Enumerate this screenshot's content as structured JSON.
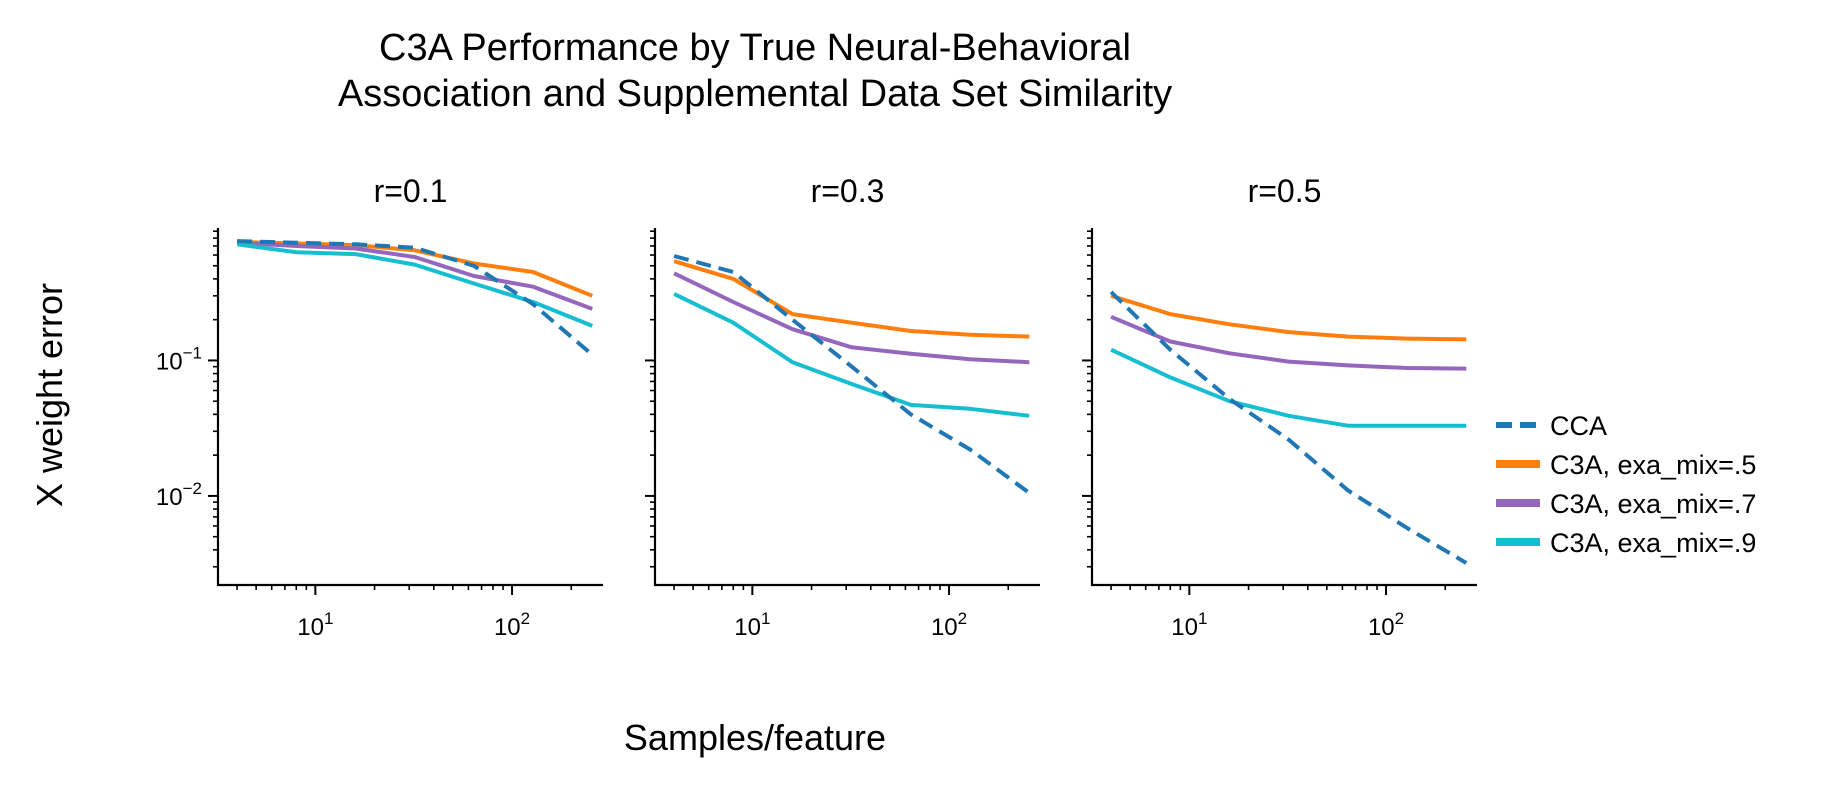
{
  "figure": {
    "title_line1": "C3A Performance by True Neural-Behavioral",
    "title_line2": "Association and Supplemental Data Set Similarity",
    "xlabel": "Samples/feature",
    "ylabel": "X weight error"
  },
  "legend": {
    "placement": "right",
    "entries": [
      "CCA",
      "C3A, exa_mix=.5",
      "C3A, exa_mix=.7",
      "C3A, exa_mix=.9"
    ]
  },
  "colors": {
    "CCA": "#1f77b4",
    "mix5": "#ff7f0e",
    "mix7": "#9467bd",
    "mix9": "#17becf"
  },
  "ticks": {
    "x": [
      {
        "value": 10,
        "base": "10",
        "exp": "1"
      },
      {
        "value": 100,
        "base": "10",
        "exp": "2"
      }
    ],
    "y": [
      {
        "value": 0.1,
        "base": "10",
        "exp": "−1"
      },
      {
        "value": 0.01,
        "base": "10",
        "exp": "−2"
      }
    ]
  },
  "chart_data": [
    {
      "type": "line",
      "title": "r=0.1",
      "xscale": "log",
      "yscale": "log",
      "xlim": [
        3.2,
        290
      ],
      "ylim": [
        0.0022,
        0.95
      ],
      "grid": false,
      "x": [
        4,
        8,
        16,
        32,
        64,
        128,
        256
      ],
      "series": [
        {
          "name": "CCA",
          "style": "dashed",
          "values": [
            0.76,
            0.74,
            0.72,
            0.68,
            0.5,
            0.26,
            0.11
          ]
        },
        {
          "name": "C3A, exa_mix=.5",
          "style": "solid",
          "values": [
            0.75,
            0.73,
            0.71,
            0.65,
            0.52,
            0.45,
            0.3
          ]
        },
        {
          "name": "C3A, exa_mix=.7",
          "style": "solid",
          "values": [
            0.74,
            0.7,
            0.67,
            0.58,
            0.42,
            0.35,
            0.24
          ]
        },
        {
          "name": "C3A, exa_mix=.9",
          "style": "solid",
          "values": [
            0.72,
            0.63,
            0.61,
            0.51,
            0.37,
            0.27,
            0.18
          ]
        }
      ]
    },
    {
      "type": "line",
      "title": "r=0.3",
      "xscale": "log",
      "yscale": "log",
      "xlim": [
        3.2,
        290
      ],
      "ylim": [
        0.0022,
        0.95
      ],
      "grid": false,
      "x": [
        4,
        8,
        16,
        32,
        64,
        128,
        256
      ],
      "series": [
        {
          "name": "CCA",
          "style": "dashed",
          "values": [
            0.59,
            0.45,
            0.2,
            0.09,
            0.04,
            0.022,
            0.0105
          ]
        },
        {
          "name": "C3A, exa_mix=.5",
          "style": "solid",
          "values": [
            0.54,
            0.4,
            0.22,
            0.19,
            0.165,
            0.155,
            0.15
          ]
        },
        {
          "name": "C3A, exa_mix=.7",
          "style": "solid",
          "values": [
            0.44,
            0.27,
            0.17,
            0.125,
            0.112,
            0.102,
            0.097
          ]
        },
        {
          "name": "C3A, exa_mix=.9",
          "style": "solid",
          "values": [
            0.31,
            0.19,
            0.097,
            0.067,
            0.047,
            0.044,
            0.039
          ]
        }
      ]
    },
    {
      "type": "line",
      "title": "r=0.5",
      "xscale": "log",
      "yscale": "log",
      "xlim": [
        3.2,
        290
      ],
      "ylim": [
        0.0022,
        0.95
      ],
      "grid": false,
      "x": [
        4,
        8,
        16,
        32,
        64,
        128,
        256
      ],
      "series": [
        {
          "name": "CCA",
          "style": "dashed",
          "values": [
            0.32,
            0.12,
            0.052,
            0.026,
            0.011,
            0.0058,
            0.0032
          ]
        },
        {
          "name": "C3A, exa_mix=.5",
          "style": "solid",
          "values": [
            0.3,
            0.22,
            0.185,
            0.162,
            0.15,
            0.145,
            0.143
          ]
        },
        {
          "name": "C3A, exa_mix=.7",
          "style": "solid",
          "values": [
            0.21,
            0.138,
            0.113,
            0.098,
            0.092,
            0.088,
            0.087
          ]
        },
        {
          "name": "C3A, exa_mix=.9",
          "style": "solid",
          "values": [
            0.12,
            0.075,
            0.05,
            0.039,
            0.033,
            0.033,
            0.033
          ]
        }
      ]
    }
  ]
}
